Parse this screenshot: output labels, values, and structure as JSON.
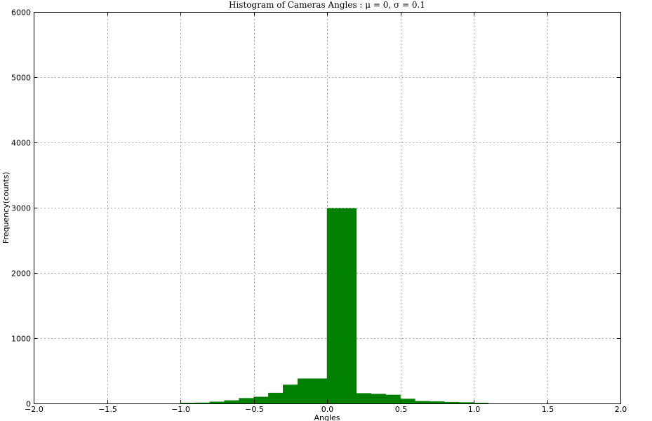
{
  "chart_data": {
    "type": "bar",
    "title": "Histogram of Cameras Angles : μ = 0, σ = 0.1",
    "xlabel": "Angles",
    "ylabel": "Frequency(counts)",
    "xlim": [
      -2.0,
      2.0
    ],
    "ylim": [
      0,
      6000
    ],
    "xticks": [
      "−2.0",
      "−1.5",
      "−1.0",
      "−0.5",
      "0.0",
      "0.5",
      "1.0",
      "1.5",
      "2.0"
    ],
    "xtick_values": [
      -2.0,
      -1.5,
      -1.0,
      -0.5,
      0.0,
      0.5,
      1.0,
      1.5,
      2.0
    ],
    "yticks": [
      "0",
      "1000",
      "2000",
      "3000",
      "4000",
      "5000",
      "6000"
    ],
    "ytick_values": [
      0,
      1000,
      2000,
      3000,
      4000,
      5000,
      6000
    ],
    "grid": true,
    "bar_color": "#008000",
    "bins": [
      {
        "x0": -1.0,
        "x1": -0.9,
        "value": 8
      },
      {
        "x0": -0.9,
        "x1": -0.8,
        "value": 10
      },
      {
        "x0": -0.8,
        "x1": -0.7,
        "value": 25
      },
      {
        "x0": -0.7,
        "x1": -0.6,
        "value": 45
      },
      {
        "x0": -0.6,
        "x1": -0.5,
        "value": 80
      },
      {
        "x0": -0.5,
        "x1": -0.4,
        "value": 100
      },
      {
        "x0": -0.4,
        "x1": -0.3,
        "value": 160
      },
      {
        "x0": -0.3,
        "x1": -0.2,
        "value": 285
      },
      {
        "x0": -0.2,
        "x1": -0.1,
        "value": 380
      },
      {
        "x0": -0.1,
        "x1": 0.0,
        "value": 380
      },
      {
        "x0": 0.0,
        "x1": 0.1,
        "value": 2990
      },
      {
        "x0": 0.1,
        "x1": 0.2,
        "value": 2990
      },
      {
        "x0": 0.2,
        "x1": 0.3,
        "value": 155
      },
      {
        "x0": 0.3,
        "x1": 0.4,
        "value": 145
      },
      {
        "x0": 0.4,
        "x1": 0.5,
        "value": 130
      },
      {
        "x0": 0.5,
        "x1": 0.6,
        "value": 70
      },
      {
        "x0": 0.6,
        "x1": 0.7,
        "value": 35
      },
      {
        "x0": 0.7,
        "x1": 0.8,
        "value": 30
      },
      {
        "x0": 0.8,
        "x1": 0.9,
        "value": 20
      },
      {
        "x0": 0.9,
        "x1": 1.0,
        "value": 15
      },
      {
        "x0": 1.0,
        "x1": 1.1,
        "value": 8
      }
    ]
  }
}
